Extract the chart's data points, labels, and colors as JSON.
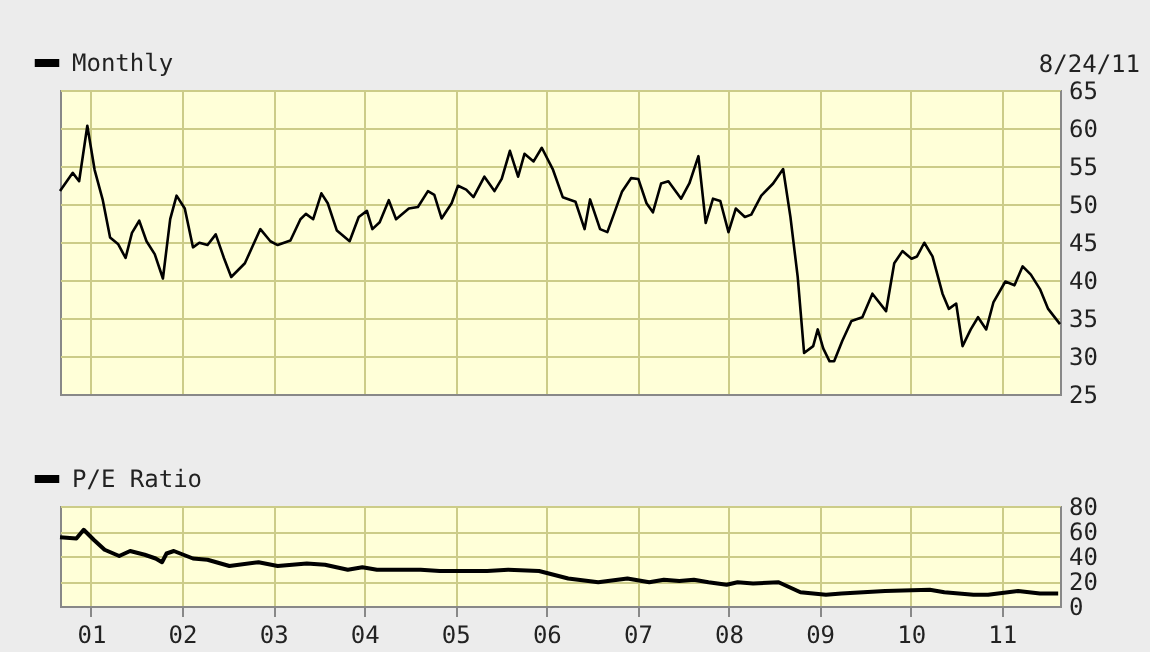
{
  "chart_data": [
    {
      "type": "line",
      "annotations": [
        "8/24/11"
      ],
      "legend": "top left",
      "grid": true,
      "tick_labels": "y",
      "xlim": [
        2000.66,
        2011.64
      ],
      "ylim": [
        25,
        65
      ],
      "yticks": [
        25,
        30,
        35,
        40,
        45,
        50,
        55,
        60,
        65
      ],
      "xticks": [
        {
          "value": 2001,
          "label": null
        },
        {
          "value": 2002,
          "label": null
        },
        {
          "value": 2003,
          "label": null
        },
        {
          "value": 2004,
          "label": null
        },
        {
          "value": 2005,
          "label": null
        },
        {
          "value": 2006,
          "label": null
        },
        {
          "value": 2007,
          "label": null
        },
        {
          "value": 2008,
          "label": null
        },
        {
          "value": 2009,
          "label": null
        },
        {
          "value": 2010,
          "label": null
        },
        {
          "value": 2011,
          "label": null
        }
      ],
      "series": [
        {
          "name": "Monthly",
          "color": "#000000",
          "x": [
            2000.66,
            2000.8,
            2000.87,
            2000.96,
            2001.04,
            2001.13,
            2001.21,
            2001.3,
            2001.38,
            2001.45,
            2001.53,
            2001.61,
            2001.7,
            2001.79,
            2001.87,
            2001.94,
            2002.03,
            2002.12,
            2002.19,
            2002.28,
            2002.37,
            2002.46,
            2002.54,
            2002.69,
            2002.86,
            2002.97,
            2003.05,
            2003.19,
            2003.3,
            2003.36,
            2003.44,
            2003.53,
            2003.6,
            2003.7,
            2003.84,
            2003.94,
            2004.03,
            2004.09,
            2004.17,
            2004.27,
            2004.35,
            2004.49,
            2004.59,
            2004.7,
            2004.77,
            2004.85,
            2004.96,
            2005.03,
            2005.12,
            2005.2,
            2005.32,
            2005.43,
            2005.51,
            2005.6,
            2005.69,
            2005.76,
            2005.86,
            2005.95,
            2006.07,
            2006.18,
            2006.32,
            2006.42,
            2006.48,
            2006.59,
            2006.67,
            2006.83,
            2006.93,
            2007.01,
            2007.1,
            2007.17,
            2007.26,
            2007.34,
            2007.48,
            2007.57,
            2007.67,
            2007.75,
            2007.83,
            2007.91,
            2008.0,
            2008.08,
            2008.18,
            2008.25,
            2008.36,
            2008.49,
            2008.6,
            2008.68,
            2008.76,
            2008.83,
            2008.93,
            2008.98,
            2009.04,
            2009.11,
            2009.16,
            2009.25,
            2009.35,
            2009.47,
            2009.58,
            2009.73,
            2009.82,
            2009.91,
            2010.01,
            2010.07,
            2010.15,
            2010.24,
            2010.35,
            2010.42,
            2010.5,
            2010.57,
            2010.66,
            2010.74,
            2010.83,
            2010.91,
            2011.04,
            2011.14,
            2011.23,
            2011.32,
            2011.42,
            2011.51,
            2011.64
          ],
          "values": [
            51.7,
            54.1,
            53.0,
            60.3,
            54.5,
            50.5,
            45.6,
            44.7,
            42.9,
            46.2,
            47.8,
            45.1,
            43.4,
            40.2,
            48.0,
            51.1,
            49.4,
            44.3,
            44.9,
            44.6,
            46.0,
            42.9,
            40.4,
            42.2,
            46.7,
            45.1,
            44.6,
            45.2,
            48.0,
            48.7,
            48.0,
            51.4,
            50.1,
            46.5,
            45.1,
            48.3,
            49.1,
            46.7,
            47.6,
            50.5,
            48.0,
            49.4,
            49.6,
            51.7,
            51.2,
            48.1,
            50.1,
            52.4,
            51.9,
            50.9,
            53.6,
            51.7,
            53.3,
            57.0,
            53.6,
            56.6,
            55.6,
            57.4,
            54.6,
            50.9,
            50.3,
            46.7,
            50.6,
            46.7,
            46.3,
            51.6,
            53.4,
            53.3,
            50.1,
            48.9,
            52.7,
            53.0,
            50.7,
            52.7,
            56.3,
            47.5,
            50.7,
            50.4,
            46.3,
            49.4,
            48.3,
            48.6,
            51.1,
            52.7,
            54.6,
            48.3,
            40.4,
            30.4,
            31.3,
            33.5,
            31.0,
            29.3,
            29.3,
            32.0,
            34.6,
            35.1,
            38.2,
            35.9,
            42.2,
            43.8,
            42.8,
            43.1,
            44.9,
            43.1,
            38.2,
            36.2,
            36.9,
            31.3,
            33.5,
            35.1,
            33.5,
            37.1,
            39.8,
            39.3,
            41.8,
            40.7,
            38.8,
            36.2,
            34.2
          ]
        }
      ]
    },
    {
      "type": "line",
      "legend": "top left",
      "grid": true,
      "xlim": [
        2000.66,
        2011.64
      ],
      "ylim": [
        0,
        80
      ],
      "yticks": [
        0,
        20,
        40,
        60,
        80
      ],
      "xticks": [
        {
          "value": 2001,
          "label": "01"
        },
        {
          "value": 2002,
          "label": "02"
        },
        {
          "value": 2003,
          "label": "03"
        },
        {
          "value": 2004,
          "label": "04"
        },
        {
          "value": 2005,
          "label": "05"
        },
        {
          "value": 2006,
          "label": "06"
        },
        {
          "value": 2007,
          "label": "07"
        },
        {
          "value": 2008,
          "label": "08"
        },
        {
          "value": 2009,
          "label": "09"
        },
        {
          "value": 2010,
          "label": "10"
        },
        {
          "value": 2011,
          "label": "11"
        }
      ],
      "series": [
        {
          "name": "P/E Ratio",
          "color": "#000000",
          "x": [
            2000.66,
            2000.84,
            2000.92,
            2001.03,
            2001.15,
            2001.31,
            2001.43,
            2001.59,
            2001.71,
            2001.78,
            2001.83,
            2001.91,
            2002.12,
            2002.28,
            2002.52,
            2002.84,
            2003.05,
            2003.37,
            2003.57,
            2003.82,
            2003.98,
            2004.14,
            2004.62,
            2004.83,
            2005.35,
            2005.58,
            2005.92,
            2006.24,
            2006.57,
            2006.89,
            2007.13,
            2007.29,
            2007.46,
            2007.62,
            2007.78,
            2007.98,
            2008.1,
            2008.27,
            2008.55,
            2008.79,
            2009.07,
            2009.24,
            2009.72,
            2010.21,
            2010.37,
            2010.69,
            2010.85,
            2011.18,
            2011.42,
            2011.62
          ],
          "values": [
            55,
            54,
            61,
            53,
            45,
            40,
            44,
            41,
            38,
            35,
            42,
            44,
            38,
            37,
            32,
            35,
            32,
            34,
            33,
            29,
            31,
            29,
            29,
            28,
            28,
            29,
            28,
            22,
            19,
            22,
            19,
            21,
            20,
            21,
            19,
            17,
            19,
            18,
            19,
            11,
            9,
            10,
            12,
            13,
            11,
            9,
            9,
            12,
            10,
            10
          ]
        }
      ]
    }
  ]
}
